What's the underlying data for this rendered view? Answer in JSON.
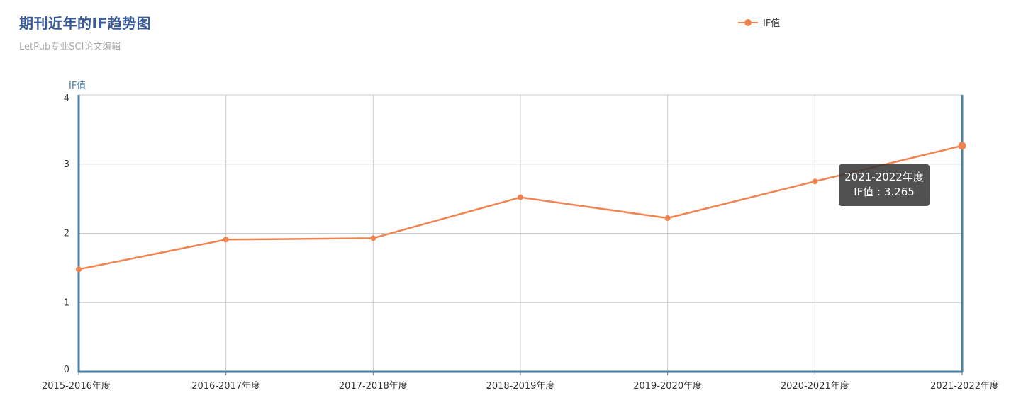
{
  "title": "期刊近年的IF趋势图",
  "subtitle": "LetPub专业SCI论文编辑",
  "legend": {
    "label": "IF值",
    "color": "#f08450"
  },
  "tooltip": {
    "category": "2021-2022年度",
    "series": "IF值",
    "value": "3.265"
  },
  "chart_data": {
    "type": "line",
    "title": "期刊近年的IF趋势图",
    "subtitle": "LetPub专业SCI论文编辑",
    "ylabel": "IF值",
    "xlabel": "",
    "ylim": [
      0,
      4
    ],
    "yticks": [
      0,
      1,
      2,
      3,
      4
    ],
    "grid": true,
    "legend": "top-right",
    "categories": [
      "2015-2016年度",
      "2016-2017年度",
      "2017-2018年度",
      "2018-2019年度",
      "2019-2020年度",
      "2020-2021年度",
      "2021-2022年度"
    ],
    "series": [
      {
        "name": "IF值",
        "values": [
          1.48,
          1.91,
          1.93,
          2.52,
          2.22,
          2.75,
          3.265
        ],
        "color": "#f08450"
      }
    ]
  }
}
